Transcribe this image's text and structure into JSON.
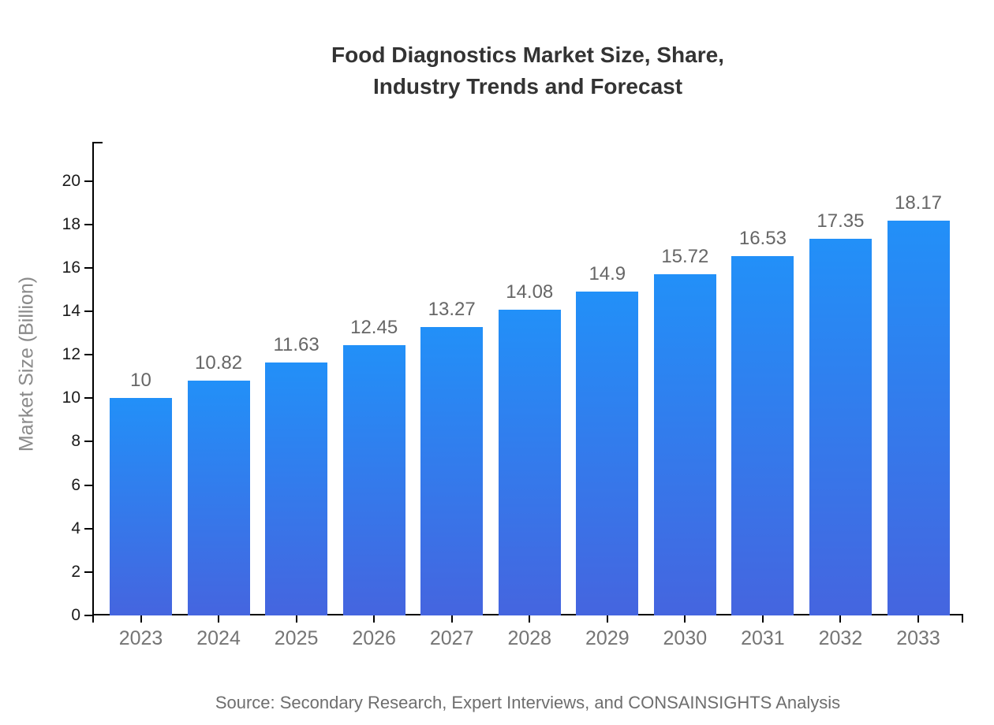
{
  "header": {
    "title": "Food Diagnostics Market Size, Share,\nIndustry Trends and Forecast"
  },
  "footer": {
    "source": "Source: Secondary Research, Expert Interviews, and CONSAINSIGHTS Analysis"
  },
  "chart_data": {
    "type": "bar",
    "title": "Food Diagnostics Market Size, Share, Industry Trends and Forecast",
    "categories": [
      "2023",
      "2024",
      "2025",
      "2026",
      "2027",
      "2028",
      "2029",
      "2030",
      "2031",
      "2032",
      "2033"
    ],
    "values": [
      10,
      10.82,
      11.63,
      12.45,
      13.27,
      14.08,
      14.9,
      15.72,
      16.53,
      17.35,
      18.17
    ],
    "value_labels": [
      "10",
      "10.82",
      "11.63",
      "12.45",
      "13.27",
      "14.08",
      "14.9",
      "15.72",
      "16.53",
      "17.35",
      "18.17"
    ],
    "xlabel": "",
    "ylabel": "Market Size (Billion)",
    "ylim": [
      0,
      21.8
    ],
    "yticks": [
      0,
      2,
      4,
      6,
      8,
      10,
      12,
      14,
      16,
      18,
      20
    ],
    "grid": false,
    "legend": null,
    "colors": {
      "bar_gradient_top": "#2290f8",
      "bar_gradient_bottom": "#4565df",
      "axis": "#000000",
      "title_text": "#333333",
      "y_tick_text": "#1a1a1a",
      "x_tick_text": "#757575",
      "value_label_text": "#666666",
      "ylabel_text": "#8a8a8a",
      "source_text": "#6e6e6e"
    }
  }
}
